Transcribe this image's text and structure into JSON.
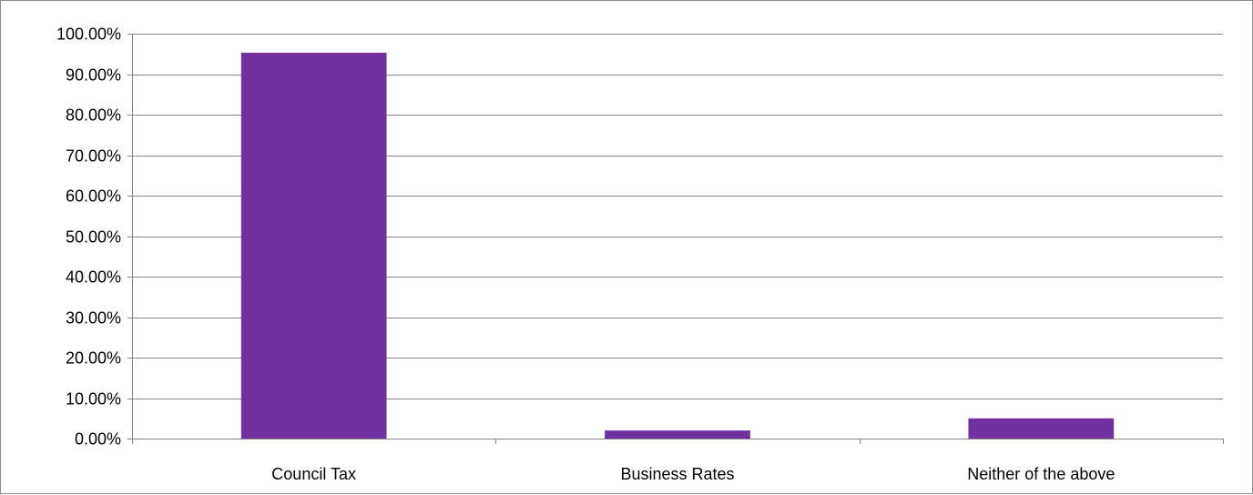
{
  "chart_data": {
    "type": "bar",
    "title": "",
    "xlabel": "",
    "ylabel": "",
    "categories": [
      "Council Tax",
      "Business Rates",
      "Neither of the above"
    ],
    "values": [
      95.3,
      2.0,
      5.0
    ],
    "ylim": [
      0,
      100
    ],
    "yticks": [
      0,
      10,
      20,
      30,
      40,
      50,
      60,
      70,
      80,
      90,
      100
    ],
    "ytick_labels": [
      "0.00%",
      "10.00%",
      "20.00%",
      "30.00%",
      "40.00%",
      "50.00%",
      "60.00%",
      "70.00%",
      "80.00%",
      "90.00%",
      "100.00%"
    ],
    "grid": true,
    "legend": "none",
    "bar_color": "#7030A0",
    "grid_color": "#868686",
    "axis_color": "#868686"
  }
}
